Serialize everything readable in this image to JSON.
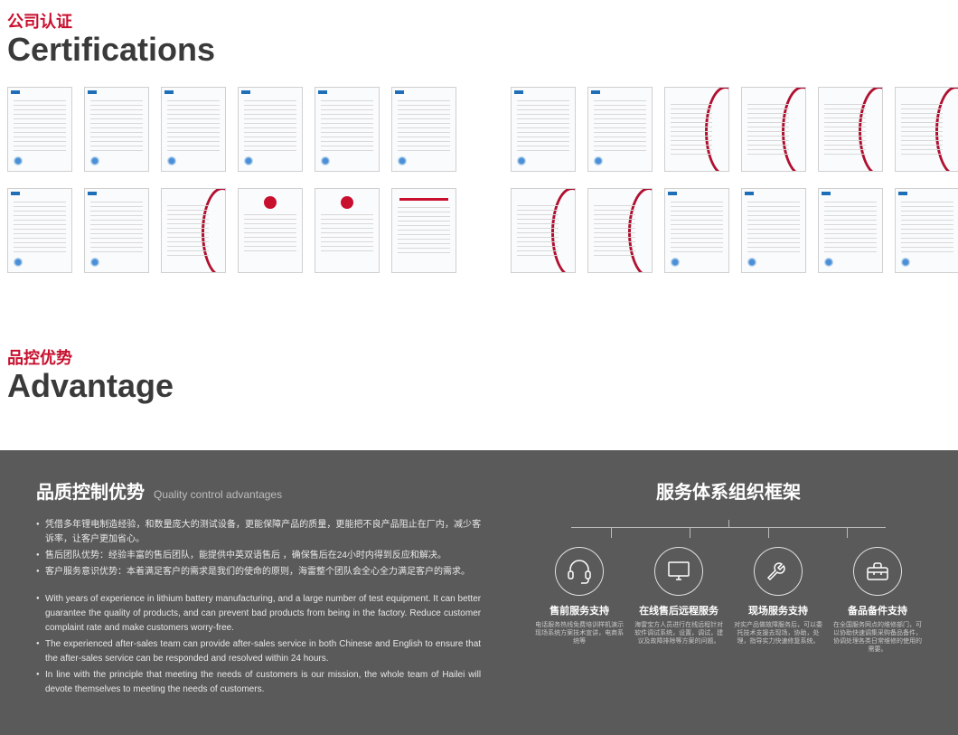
{
  "cert_header": {
    "cn": "公司认证",
    "en": "Certifications"
  },
  "adv_header": {
    "cn": "品控优势",
    "en": "Advantage"
  },
  "cert_left": [
    "blue",
    "blue",
    "blue",
    "blue",
    "blue",
    "blue",
    "blue",
    "blue",
    "red-arc",
    "red-badge",
    "red-badge",
    "red-bar"
  ],
  "cert_right": [
    "blue",
    "blue",
    "red-arc",
    "red-arc",
    "red-arc",
    "red-arc",
    "red-arc",
    "red-arc",
    "blue",
    "blue",
    "blue",
    "blue"
  ],
  "qc": {
    "title_cn": "品质控制优势",
    "title_en": "Quality control advantages",
    "bullets_cn": [
      "凭借多年锂电制造经验，和数量庞大的测试设备，更能保障产品的质量，更能把不良产品阻止在厂内，减少客诉率，让客户更加省心。",
      "售后团队优势：经验丰富的售后团队，能提供中英双语售后 ，确保售后在24小时内得到反应和解决。",
      "客户服务意识优势：本着满足客户的需求是我们的使命的原则，海雷整个团队会全心全力满足客户的需求。"
    ],
    "bullets_en": [
      "With years of experience in lithium battery manufacturing, and a large number of test equipment. It can better guarantee the quality of products, and can prevent bad products from being in the factory. Reduce customer complaint rate and make customers worry-free.",
      "The experienced after-sales team can provide after-sales service in both Chinese and English to ensure that the after-sales service can be responded and resolved within 24 hours.",
      "In line with the principle that meeting the needs of customers is our mission, the whole team of Hailei will devote themselves to meeting the needs of customers."
    ]
  },
  "svc": {
    "title": "服务体系组织框架",
    "items": [
      {
        "icon": "headset",
        "label": "售前服务支持",
        "desc": "电话服务热线免费培训样机演示现场系统方案技术宣讲，电商系统等"
      },
      {
        "icon": "monitor",
        "label": "在线售后远程服务",
        "desc": "海雷宝方人员进行在线远程针对软件调试系统，设置，调试，建议及故障排除等方案的问题。"
      },
      {
        "icon": "wrench",
        "label": "现场服务支持",
        "desc": "对实产品做故障服务后，可以委托技术支援去现场，协助，处理，指导实力快速修复系统。"
      },
      {
        "icon": "toolbox",
        "label": "备品备件支持",
        "desc": "在全国服务网点的维修部门，可以协助快速调集采购备品备件，协调处理各类日常维修的使用的需要。"
      }
    ]
  },
  "colors": {
    "accent": "#c8102e",
    "dark_bg": "#5a5a5a"
  }
}
